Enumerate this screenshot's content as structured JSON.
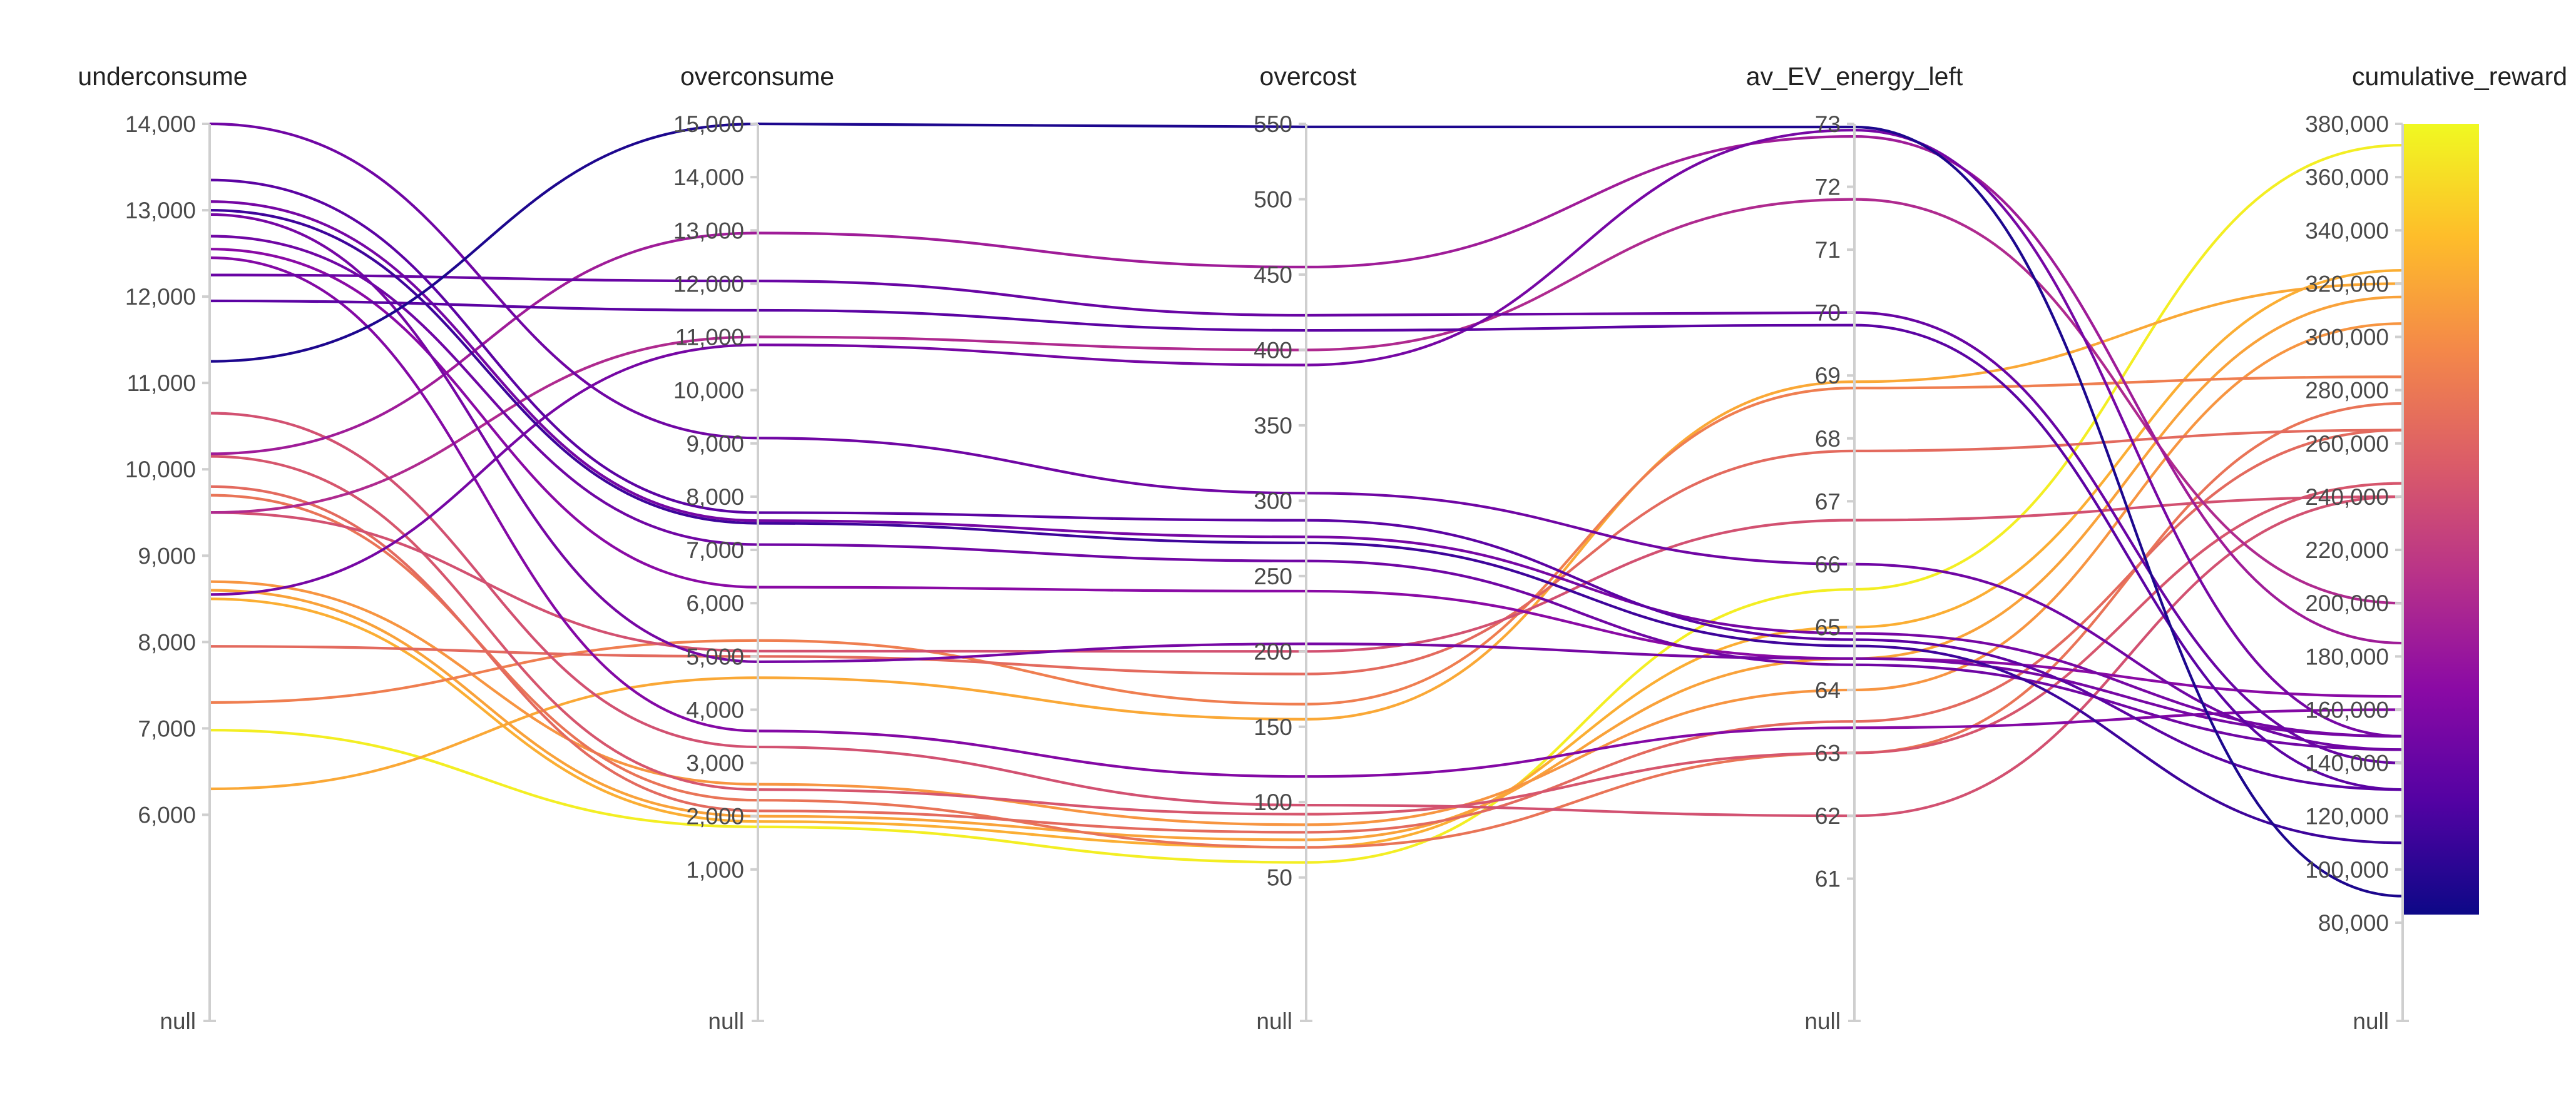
{
  "chart_data": {
    "type": "parallel_coordinates",
    "null_label": "null",
    "axes": [
      {
        "key": "underconsume",
        "label": "underconsume",
        "range": [
          4750,
          14000
        ],
        "ticks": [
          {
            "v": 6000,
            "t": "6,000"
          },
          {
            "v": 7000,
            "t": "7,000"
          },
          {
            "v": 8000,
            "t": "8,000"
          },
          {
            "v": 9000,
            "t": "9,000"
          },
          {
            "v": 10000,
            "t": "10,000"
          },
          {
            "v": 11000,
            "t": "11,000"
          },
          {
            "v": 12000,
            "t": "12,000"
          },
          {
            "v": 13000,
            "t": "13,000"
          },
          {
            "v": 14000,
            "t": "14,000"
          }
        ]
      },
      {
        "key": "overconsume",
        "label": "overconsume",
        "range": [
          0,
          15000
        ],
        "ticks": [
          {
            "v": 1000,
            "t": "1,000"
          },
          {
            "v": 2000,
            "t": "2,000"
          },
          {
            "v": 3000,
            "t": "3,000"
          },
          {
            "v": 4000,
            "t": "4,000"
          },
          {
            "v": 5000,
            "t": "5,000"
          },
          {
            "v": 6000,
            "t": "6,000"
          },
          {
            "v": 7000,
            "t": "7,000"
          },
          {
            "v": 8000,
            "t": "8,000"
          },
          {
            "v": 9000,
            "t": "9,000"
          },
          {
            "v": 10000,
            "t": "10,000"
          },
          {
            "v": 11000,
            "t": "11,000"
          },
          {
            "v": 12000,
            "t": "12,000"
          },
          {
            "v": 13000,
            "t": "13,000"
          },
          {
            "v": 14000,
            "t": "14,000"
          },
          {
            "v": 15000,
            "t": "15,000"
          }
        ]
      },
      {
        "key": "overcost",
        "label": "overcost",
        "range": [
          20,
          550
        ],
        "ticks": [
          {
            "v": 50,
            "t": "50"
          },
          {
            "v": 100,
            "t": "100"
          },
          {
            "v": 150,
            "t": "150"
          },
          {
            "v": 200,
            "t": "200"
          },
          {
            "v": 250,
            "t": "250"
          },
          {
            "v": 300,
            "t": "300"
          },
          {
            "v": 350,
            "t": "350"
          },
          {
            "v": 400,
            "t": "400"
          },
          {
            "v": 450,
            "t": "450"
          },
          {
            "v": 500,
            "t": "500"
          },
          {
            "v": 550,
            "t": "550"
          }
        ]
      },
      {
        "key": "av_EV_energy_left",
        "label": "av_EV_energy_left",
        "range": [
          60.3,
          73
        ],
        "ticks": [
          {
            "v": 61,
            "t": "61"
          },
          {
            "v": 62,
            "t": "62"
          },
          {
            "v": 63,
            "t": "63"
          },
          {
            "v": 64,
            "t": "64"
          },
          {
            "v": 65,
            "t": "65"
          },
          {
            "v": 66,
            "t": "66"
          },
          {
            "v": 67,
            "t": "67"
          },
          {
            "v": 68,
            "t": "68"
          },
          {
            "v": 69,
            "t": "69"
          },
          {
            "v": 70,
            "t": "70"
          },
          {
            "v": 71,
            "t": "71"
          },
          {
            "v": 72,
            "t": "72"
          },
          {
            "v": 73,
            "t": "73"
          }
        ]
      },
      {
        "key": "cumulative_reward",
        "label": "cumulative_reward",
        "range": [
          80000,
          380000
        ],
        "ticks": [
          {
            "v": 80000,
            "t": "80,000"
          },
          {
            "v": 100000,
            "t": "100,000"
          },
          {
            "v": 120000,
            "t": "120,000"
          },
          {
            "v": 140000,
            "t": "140,000"
          },
          {
            "v": 160000,
            "t": "160,000"
          },
          {
            "v": 180000,
            "t": "180,000"
          },
          {
            "v": 200000,
            "t": "200,000"
          },
          {
            "v": 220000,
            "t": "220,000"
          },
          {
            "v": 240000,
            "t": "240,000"
          },
          {
            "v": 260000,
            "t": "260,000"
          },
          {
            "v": 280000,
            "t": "280,000"
          },
          {
            "v": 300000,
            "t": "300,000"
          },
          {
            "v": 320000,
            "t": "320,000"
          },
          {
            "v": 340000,
            "t": "340,000"
          },
          {
            "v": 360000,
            "t": "360,000"
          },
          {
            "v": 380000,
            "t": "380,000"
          }
        ]
      }
    ],
    "colorscale": {
      "name": "plasma",
      "domain": [
        80000,
        380000
      ],
      "stops": [
        "#0d0887",
        "#5302a3",
        "#8b0aa5",
        "#b83289",
        "#db5c68",
        "#f48849",
        "#febd2a",
        "#f0f921"
      ]
    },
    "runs": [
      {
        "underconsume": 11250,
        "overconsume": 15000,
        "overcost": 548,
        "av_EV_energy_left": 72.95,
        "cumulative_reward": 90000
      },
      {
        "underconsume": 10180,
        "overconsume": 12950,
        "overcost": 455,
        "av_EV_energy_left": 72.8,
        "cumulative_reward": 185000
      },
      {
        "underconsume": 9500,
        "overconsume": 11000,
        "overcost": 400,
        "av_EV_energy_left": 71.8,
        "cumulative_reward": 200000
      },
      {
        "underconsume": 8550,
        "overconsume": 10850,
        "overcost": 390,
        "av_EV_energy_left": 72.9,
        "cumulative_reward": 150000
      },
      {
        "underconsume": 12250,
        "overconsume": 12050,
        "overcost": 423,
        "av_EV_energy_left": 70.0,
        "cumulative_reward": 140000
      },
      {
        "underconsume": 11950,
        "overconsume": 11500,
        "overcost": 413,
        "av_EV_energy_left": 69.8,
        "cumulative_reward": 130000
      },
      {
        "underconsume": 14000,
        "overconsume": 9100,
        "overcost": 305,
        "av_EV_energy_left": 66.0,
        "cumulative_reward": 145000
      },
      {
        "underconsume": 13350,
        "overconsume": 7700,
        "overcost": 287,
        "av_EV_energy_left": 64.8,
        "cumulative_reward": 130000
      },
      {
        "underconsume": 13100,
        "overconsume": 7550,
        "overcost": 276,
        "av_EV_energy_left": 64.9,
        "cumulative_reward": 150000
      },
      {
        "underconsume": 13000,
        "overconsume": 7500,
        "overcost": 272,
        "av_EV_energy_left": 64.7,
        "cumulative_reward": 110000
      },
      {
        "underconsume": 12700,
        "overconsume": 7100,
        "overcost": 260,
        "av_EV_energy_left": 64.4,
        "cumulative_reward": 145000
      },
      {
        "underconsume": 12550,
        "overconsume": 6300,
        "overcost": 240,
        "av_EV_energy_left": 64.5,
        "cumulative_reward": 165000
      },
      {
        "underconsume": 12950,
        "overconsume": 4900,
        "overcost": 205,
        "av_EV_energy_left": 64.5,
        "cumulative_reward": 150000
      },
      {
        "underconsume": 12450,
        "overconsume": 3600,
        "overcost": 117,
        "av_EV_energy_left": 63.4,
        "cumulative_reward": 160000
      },
      {
        "underconsume": 10650,
        "overconsume": 3300,
        "overcost": 98,
        "av_EV_energy_left": 62.0,
        "cumulative_reward": 240000
      },
      {
        "underconsume": 9500,
        "overconsume": 5100,
        "overcost": 200,
        "av_EV_energy_left": 66.7,
        "cumulative_reward": 240000
      },
      {
        "underconsume": 7950,
        "overconsume": 5000,
        "overcost": 185,
        "av_EV_energy_left": 67.8,
        "cumulative_reward": 265000
      },
      {
        "underconsume": 7300,
        "overconsume": 5300,
        "overcost": 165,
        "av_EV_energy_left": 68.8,
        "cumulative_reward": 285000
      },
      {
        "underconsume": 6300,
        "overconsume": 4600,
        "overcost": 155,
        "av_EV_energy_left": 68.9,
        "cumulative_reward": 320000
      },
      {
        "underconsume": 10150,
        "overconsume": 2500,
        "overcost": 92,
        "av_EV_energy_left": 63.0,
        "cumulative_reward": 245000
      },
      {
        "underconsume": 9800,
        "overconsume": 2100,
        "overcost": 80,
        "av_EV_energy_left": 63.5,
        "cumulative_reward": 265000
      },
      {
        "underconsume": 9700,
        "overconsume": 2300,
        "overcost": 70,
        "av_EV_energy_left": 63.0,
        "cumulative_reward": 275000
      },
      {
        "underconsume": 8700,
        "overconsume": 2600,
        "overcost": 85,
        "av_EV_energy_left": 64.0,
        "cumulative_reward": 305000
      },
      {
        "underconsume": 8600,
        "overconsume": 2000,
        "overcost": 75,
        "av_EV_energy_left": 64.5,
        "cumulative_reward": 315000
      },
      {
        "underconsume": 8500,
        "overconsume": 1900,
        "overcost": 70,
        "av_EV_energy_left": 65.0,
        "cumulative_reward": 325000
      },
      {
        "underconsume": 6980,
        "overconsume": 1800,
        "overcost": 60,
        "av_EV_energy_left": 65.6,
        "cumulative_reward": 372000
      }
    ]
  }
}
